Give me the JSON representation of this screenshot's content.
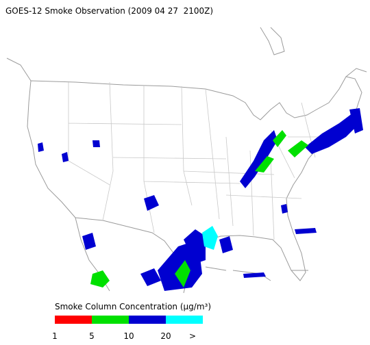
{
  "title": "GOES-12 Smoke Observation (2009 04 27  2100Z)",
  "legend": {
    "title": "Smoke Column Concentration (μg/m³)",
    "colors": [
      "#ff0000",
      "#00e000",
      "#0000d0",
      "#00ffff"
    ],
    "labels": [
      "1",
      "5",
      "10",
      "20",
      ">"
    ]
  }
}
